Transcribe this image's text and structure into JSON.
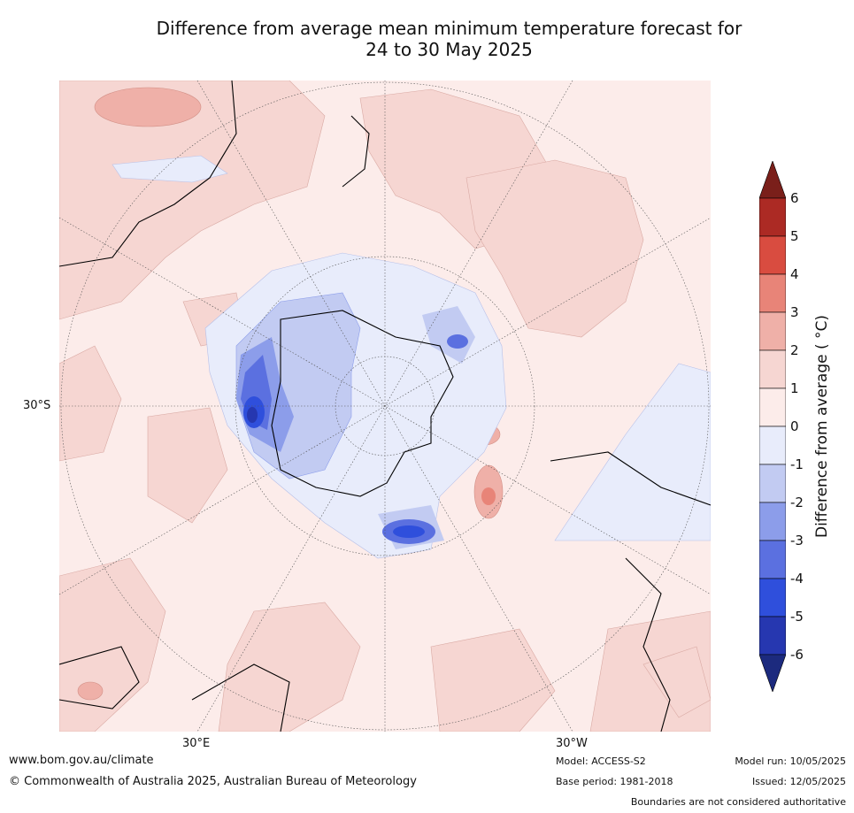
{
  "title": {
    "line1": "Difference from average mean minimum temperature forecast for",
    "line2": "24 to 30 May 2025"
  },
  "map": {
    "projection": "south-polar stereographic",
    "lat_label": "30°S",
    "lon_label_left": "30°E",
    "lon_label_right": "30°W"
  },
  "colorbar": {
    "label": "Difference from average ( °C)",
    "ticks": [
      "6",
      "5",
      "4",
      "3",
      "2",
      "1",
      "0",
      "-1",
      "-2",
      "-3",
      "-4",
      "-5",
      "-6"
    ],
    "colors": {
      "gt6": "#7a1f1a",
      "5_6": "#ac2a24",
      "4_5": "#d94c40",
      "3_4": "#e88478",
      "2_3": "#efb0a8",
      "1_2": "#f6d6d2",
      "0_1": "#fcecea",
      "m1_0": "#e8ecfb",
      "m2_m1": "#c2cbf2",
      "m3_m2": "#8c9dea",
      "m4_m3": "#5b70e0",
      "m5_m4": "#2f4fdc",
      "m6_m5": "#2637b0",
      "lt_m6": "#1c2a7e"
    }
  },
  "footer": {
    "url": "www.bom.gov.au/climate",
    "copyright": "© Commonwealth of Australia 2025, Australian Bureau of Meteorology",
    "model": "Model: ACCESS-S2",
    "base_period": "Base period: 1981-2018",
    "model_run": "Model run: 10/05/2025",
    "issued": "Issued: 12/05/2025",
    "disclaimer": "Boundaries are not considered authoritative"
  }
}
